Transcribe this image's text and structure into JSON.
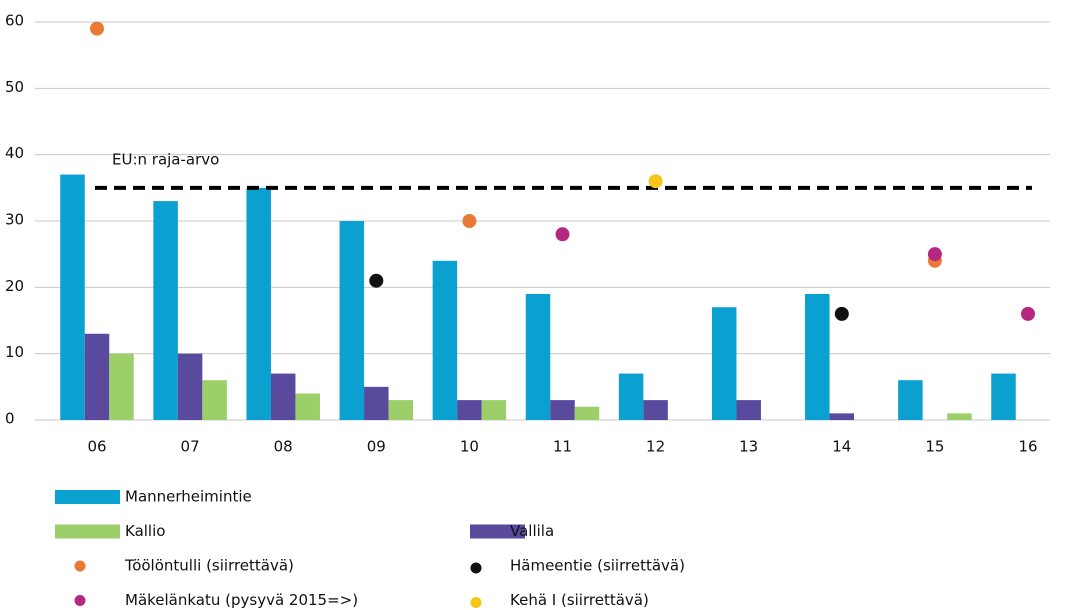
{
  "chart_data": {
    "type": "bar",
    "categories": [
      "06",
      "07",
      "08",
      "09",
      "10",
      "11",
      "12",
      "13",
      "14",
      "15",
      "16"
    ],
    "ylim": [
      0,
      60
    ],
    "yticks": [
      0,
      10,
      20,
      30,
      40,
      50,
      60
    ],
    "grid": true,
    "reference": {
      "value": 35,
      "label": "EU:n raja-arvo"
    },
    "series": [
      {
        "name": "Mannerheimintie",
        "type": "bar",
        "color": "#0aa0d0",
        "values": [
          37,
          33,
          35,
          30,
          24,
          19,
          7,
          17,
          19,
          6,
          7
        ]
      },
      {
        "name": "Vallila",
        "type": "bar",
        "color": "#5a4a9e",
        "values": [
          13,
          10,
          7,
          5,
          3,
          3,
          3,
          3,
          1,
          null,
          null
        ]
      },
      {
        "name": "Kallio",
        "type": "bar",
        "color": "#9ccf6a",
        "values": [
          10,
          6,
          4,
          3,
          3,
          2,
          null,
          null,
          null,
          1,
          null
        ]
      },
      {
        "name": "Hämeentie (siirrettävä)",
        "type": "scatter",
        "color": "#111111",
        "values": [
          null,
          null,
          null,
          21,
          null,
          null,
          null,
          null,
          16,
          null,
          null
        ]
      },
      {
        "name": "Töölöntulli (siirrettävä)",
        "type": "scatter",
        "color": "#e87a35",
        "values": [
          59,
          null,
          null,
          null,
          30,
          null,
          null,
          null,
          null,
          24,
          null
        ]
      },
      {
        "name": "Kehä I (siirrettävä)",
        "type": "scatter",
        "color": "#f5c518",
        "values": [
          null,
          null,
          null,
          null,
          null,
          null,
          36,
          null,
          null,
          null,
          null
        ]
      },
      {
        "name": "Mäkelänkatu (pysyvä 2015=>)",
        "type": "scatter",
        "color": "#b5287f",
        "values": [
          null,
          null,
          null,
          null,
          null,
          28,
          null,
          null,
          null,
          25,
          16
        ]
      }
    ]
  }
}
